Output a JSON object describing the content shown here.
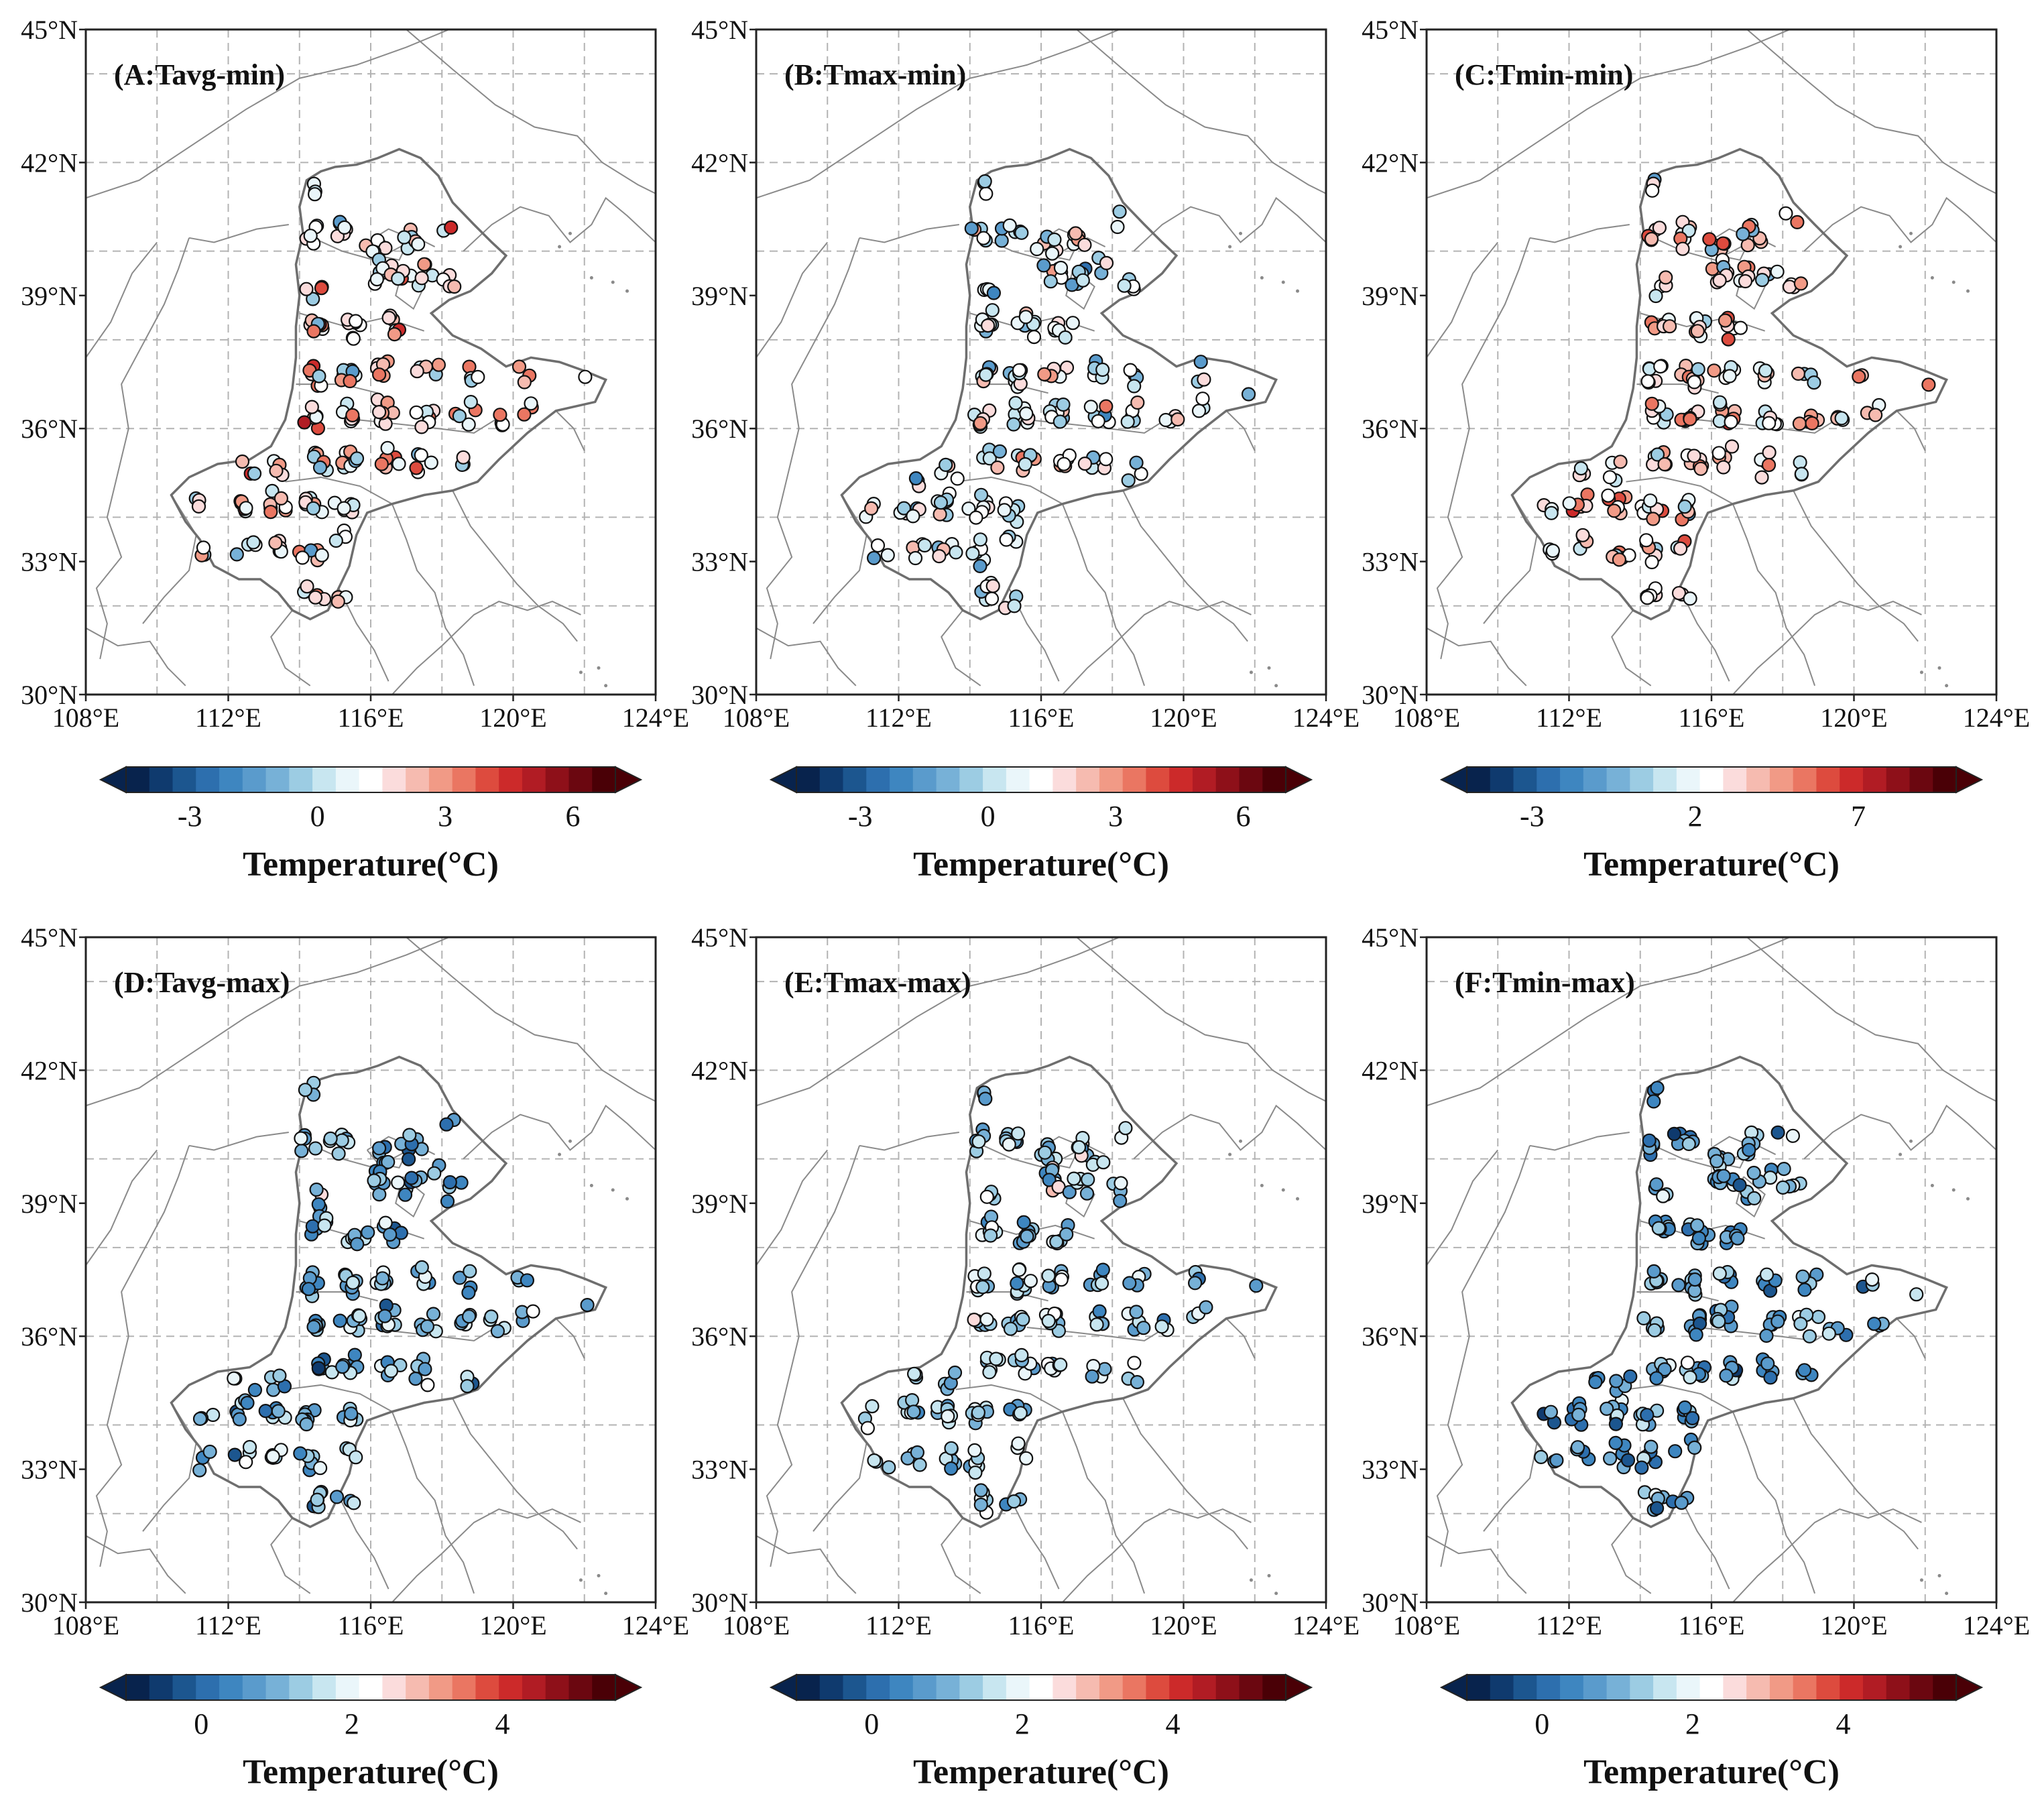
{
  "figure": {
    "cb_label": "Temperature(°C)",
    "lon_ticks": [
      "108°E",
      "112°E",
      "116°E",
      "120°E",
      "124°E"
    ],
    "lat_ticks": [
      "30°N",
      "33°N",
      "36°N",
      "39°N",
      "42°N",
      "45°N"
    ],
    "extent": {
      "lon": [
        108,
        124
      ],
      "lat": [
        30,
        45
      ]
    },
    "colors": {
      "diverging": [
        "#08234d",
        "#0f3a6e",
        "#1c568f",
        "#2d6fae",
        "#3e86c0",
        "#5a9bcc",
        "#77b1d7",
        "#9ccce3",
        "#c8e6f0",
        "#eaf6fa",
        "#ffffff",
        "#fbdcdc",
        "#f6bbb0",
        "#f19a86",
        "#ea7662",
        "#dd4b3e",
        "#cc2a2a",
        "#b11c24",
        "#8e1019",
        "#6b0710",
        "#4a0006"
      ],
      "outline": "#6e6e6e",
      "grid": "#b3b3b3"
    }
  },
  "chart_data": [
    {
      "type": "map-scatter",
      "title": "(A:Tavg-min)",
      "cb_ticks": [
        "-3",
        "0",
        "3",
        "6"
      ],
      "cb_values": [
        -3,
        0,
        3,
        6
      ],
      "range": [
        -4.5,
        7.0
      ],
      "seed": 11,
      "bias": 1.6,
      "spread": 2.2
    },
    {
      "type": "map-scatter",
      "title": "(B:Tmax-min)",
      "cb_ticks": [
        "-3",
        "0",
        "3",
        "6"
      ],
      "cb_values": [
        -3,
        0,
        3,
        6
      ],
      "range": [
        -4.5,
        7.0
      ],
      "seed": 23,
      "bias": 0.6,
      "spread": 1.9
    },
    {
      "type": "map-scatter",
      "title": "(C:Tmin-min)",
      "cb_ticks": [
        "-3",
        "2",
        "7"
      ],
      "cb_values": [
        -3,
        2,
        7
      ],
      "range": [
        -5.0,
        10.0
      ],
      "seed": 37,
      "bias": 3.2,
      "spread": 2.6
    },
    {
      "type": "map-scatter",
      "title": "(D:Tavg-max)",
      "cb_ticks": [
        "0",
        "2",
        "4"
      ],
      "cb_values": [
        0,
        2,
        4
      ],
      "range": [
        -1.0,
        5.5
      ],
      "seed": 41,
      "bias": 0.9,
      "spread": 0.9
    },
    {
      "type": "map-scatter",
      "title": "(E:Tmax-max)",
      "cb_ticks": [
        "0",
        "2",
        "4"
      ],
      "cb_values": [
        0,
        2,
        4
      ],
      "range": [
        -1.0,
        5.5
      ],
      "seed": 53,
      "bias": 1.3,
      "spread": 0.9
    },
    {
      "type": "map-scatter",
      "title": "(F:Tmin-max)",
      "cb_ticks": [
        "0",
        "2",
        "4"
      ],
      "cb_values": [
        0,
        2,
        4
      ],
      "range": [
        -1.0,
        5.5
      ],
      "seed": 67,
      "bias": 0.8,
      "spread": 0.85
    }
  ]
}
